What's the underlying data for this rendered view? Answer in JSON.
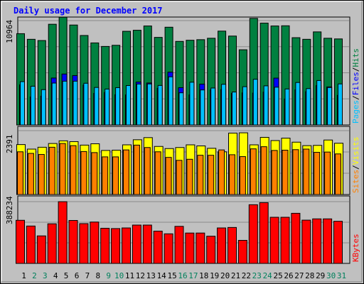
{
  "chart_data": {
    "type": "bar",
    "title": "Daily usage for December 2017",
    "days": [
      "1",
      "2",
      "3",
      "4",
      "5",
      "6",
      "7",
      "8",
      "9",
      "10",
      "11",
      "12",
      "13",
      "14",
      "15",
      "16",
      "17",
      "18",
      "19",
      "20",
      "21",
      "22",
      "23",
      "24",
      "25",
      "26",
      "27",
      "28",
      "29",
      "30",
      "31"
    ],
    "weekend_days": [
      "2",
      "3",
      "9",
      "10",
      "16",
      "17",
      "23",
      "24",
      "30",
      "31"
    ],
    "panels": [
      {
        "key": "hits_files_pages",
        "max_label": "10964",
        "ylim": [
          0,
          10964
        ],
        "series": [
          {
            "name": "Hits",
            "color": "#008040",
            "values": [
              9590,
              9000,
              8870,
              10580,
              11320,
              10500,
              9400,
              8620,
              8250,
              8370,
              9840,
              9950,
              10400,
              9200,
              10270,
              8780,
              8900,
              8960,
              9110,
              9860,
              9340,
              7900,
              11200,
              10700,
              10400,
              10420,
              9170,
              9000,
              9780,
              9110,
              9040
            ]
          },
          {
            "name": "Files",
            "color": "#0000ff",
            "values": [
              4220,
              2940,
              3030,
              4930,
              5350,
              5190,
              4190,
              3320,
              3410,
              3180,
              3160,
              4510,
              4410,
              3850,
              5550,
              3920,
              3160,
              4290,
              3680,
              3720,
              3320,
              3370,
              3350,
              3450,
              4920,
              2730,
              3690,
              3500,
              4140,
              4000,
              3110
            ]
          },
          {
            "name": "Pages",
            "color": "#00c0ff",
            "values": [
              4550,
              4070,
              3710,
              4400,
              4600,
              4600,
              4380,
              3940,
              3770,
              3920,
              4140,
              4300,
              4310,
              4150,
              5060,
              3380,
              4490,
              3680,
              3880,
              4270,
              3460,
              4020,
              4800,
              4110,
              3970,
              3780,
              4460,
              3820,
              4670,
              3930,
              4310
            ]
          }
        ]
      },
      {
        "key": "visits_sites",
        "max_label": "2391",
        "ylim": [
          0,
          2391
        ],
        "series": [
          {
            "name": "Visits",
            "color": "#ffff00",
            "values": [
              1870,
              1700,
              1770,
              1910,
              2010,
              1980,
              1850,
              1900,
              1650,
              1660,
              1860,
              2050,
              2130,
              1800,
              1720,
              1760,
              1860,
              1820,
              1730,
              1600,
              2300,
              2310,
              1860,
              2140,
              2020,
              2110,
              1960,
              1830,
              1840,
              2040,
              1920
            ]
          },
          {
            "name": "Sites",
            "color": "#ff8000",
            "values": [
              1600,
              1540,
              1500,
              1770,
              1910,
              1830,
              1610,
              1570,
              1410,
              1410,
              1670,
              1850,
              1760,
              1600,
              1390,
              1280,
              1320,
              1470,
              1470,
              1670,
              1490,
              1420,
              1710,
              1790,
              1650,
              1660,
              1680,
              1700,
              1580,
              1590,
              1520
            ]
          }
        ]
      },
      {
        "key": "kbytes",
        "max_label": "388234",
        "ylim": [
          0,
          388234
        ],
        "series": [
          {
            "name": "KBytes",
            "color": "#ff0000",
            "values": [
              271000,
              235000,
              173000,
              249000,
              388000,
              270000,
              250000,
              260000,
              221000,
              219000,
              223000,
              241000,
              241000,
              203000,
              186000,
              233000,
              191000,
              191000,
              171000,
              223000,
              226000,
              145000,
              369000,
              382000,
              290000,
              290000,
              315000,
              272000,
              280000,
              280000,
              265000
            ]
          }
        ]
      }
    ],
    "legends": [
      [
        "Pages",
        "/",
        "Files",
        "/",
        "Hits"
      ],
      [
        "Sites",
        "/",
        "Visits"
      ],
      [
        "KBytes"
      ]
    ],
    "colors": {
      "background": "#c0c0c0",
      "plot_bg": "#c0c0c0",
      "title": "#0000ff",
      "axis_text": "#000000",
      "weekend_text": "#00805c",
      "grid": "#8a8a8a"
    }
  }
}
